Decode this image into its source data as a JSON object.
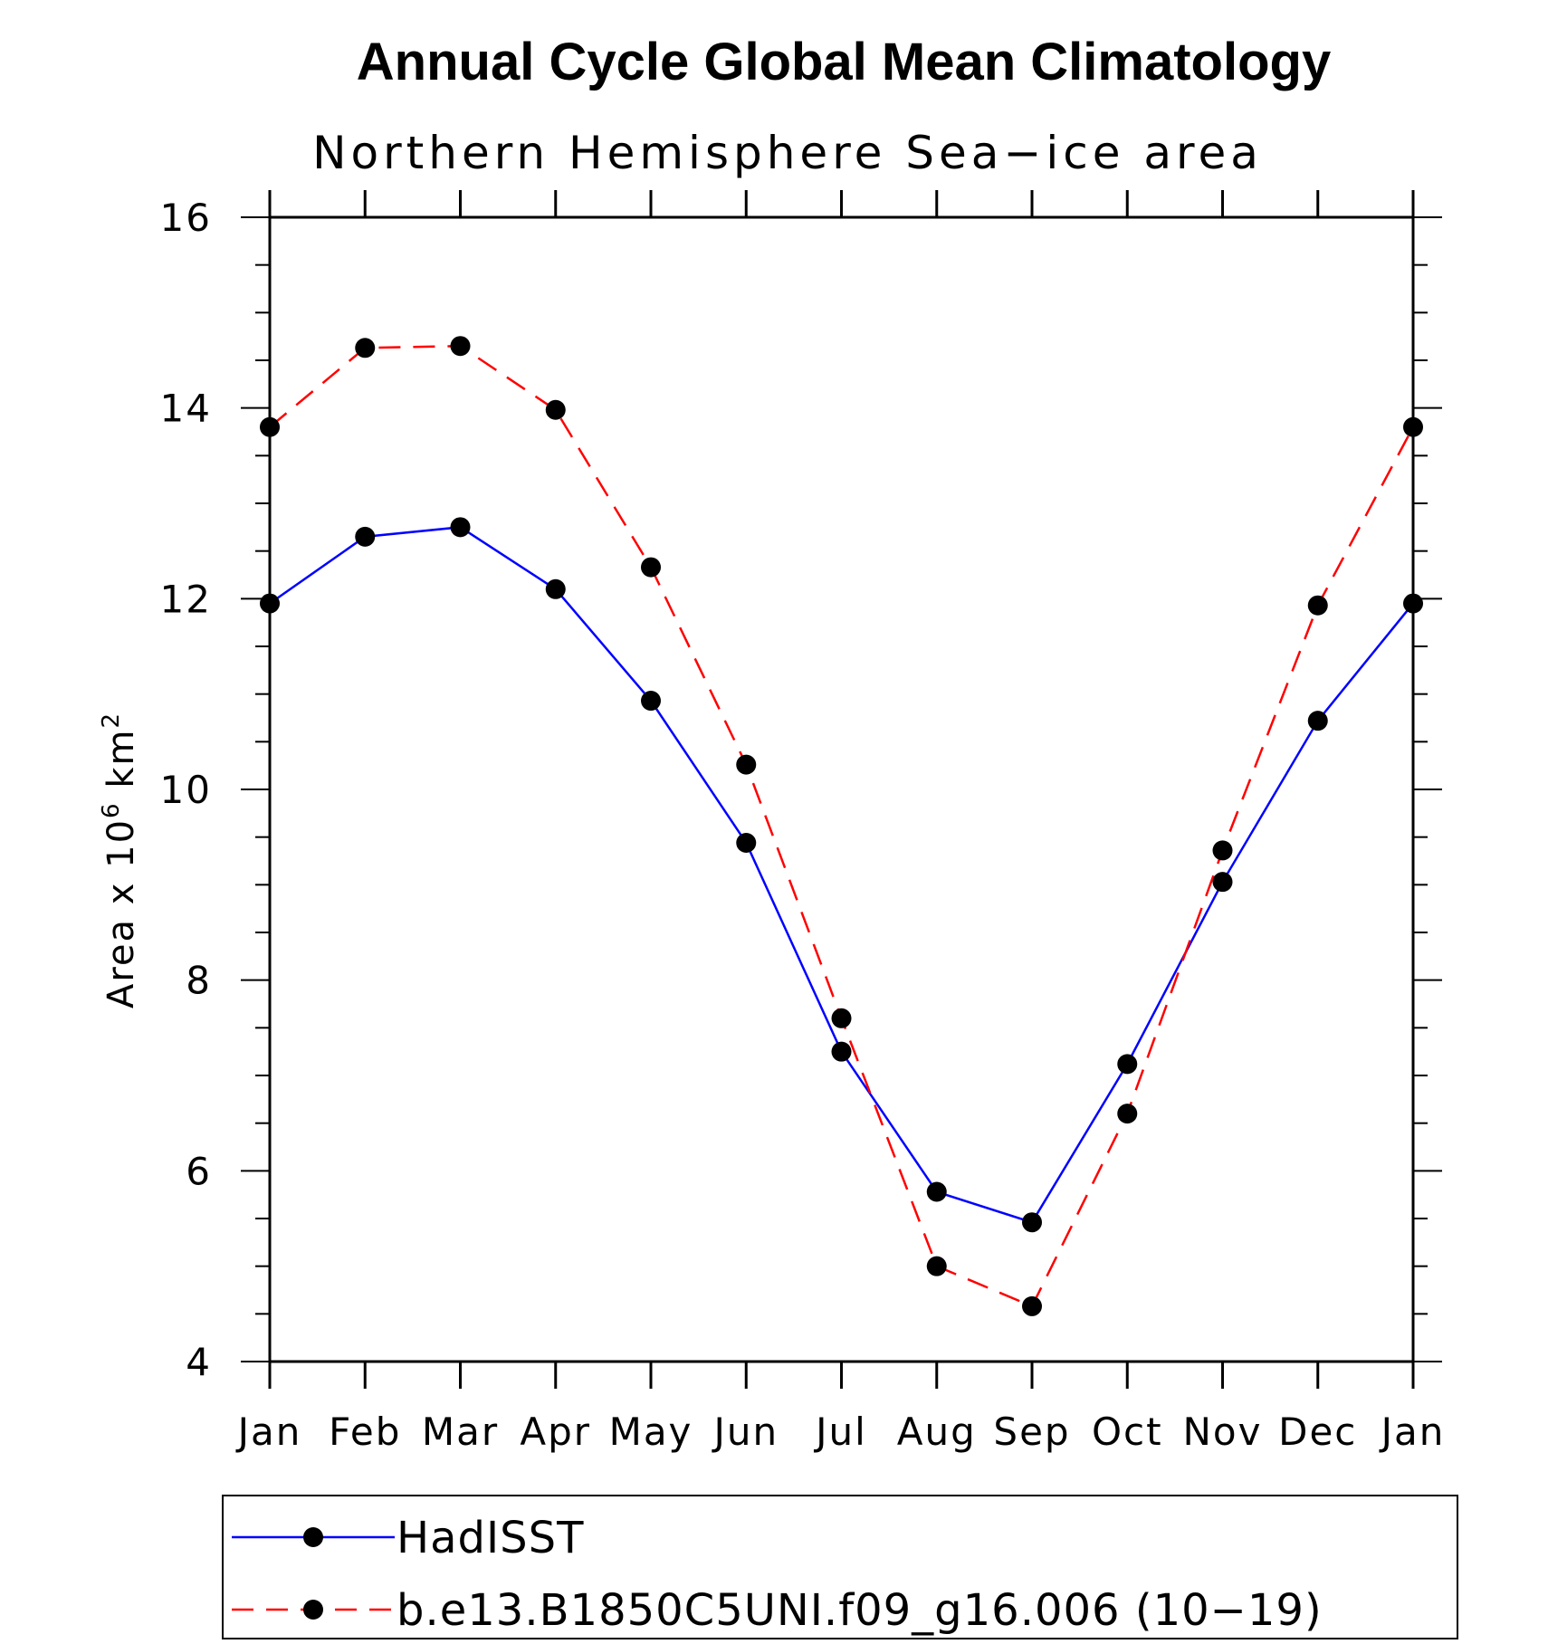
{
  "chart_data": {
    "type": "line",
    "title": "Annual Cycle Global Mean Climatology",
    "subtitle": "Northern Hemisphere Sea−ice area",
    "ylabel": "Area x 10^6 km^2",
    "ylabel_parts": {
      "main": "Area x 10",
      "exp1": "6",
      "unit": " km",
      "exp2": "2"
    },
    "categories": [
      "Jan",
      "Feb",
      "Mar",
      "Apr",
      "May",
      "Jun",
      "Jul",
      "Aug",
      "Sep",
      "Oct",
      "Nov",
      "Dec",
      "Jan"
    ],
    "ylim": [
      4,
      16
    ],
    "yticks": [
      "4",
      "6",
      "8",
      "10",
      "12",
      "14",
      "16"
    ],
    "ytick_values": [
      4,
      6,
      8,
      10,
      12,
      14,
      16
    ],
    "grid": false,
    "legend_position": "bottom",
    "series": [
      {
        "name": "HadISST",
        "color": "#0000ff",
        "dash": "solid",
        "values": [
          11.95,
          12.65,
          12.75,
          12.1,
          10.93,
          9.44,
          7.25,
          5.78,
          5.46,
          7.12,
          9.03,
          10.72,
          11.95
        ]
      },
      {
        "name": "b.e13.B1850C5UNI.f09_g16.006 (10−19)",
        "color": "#ff0000",
        "dash": "dashed",
        "values": [
          13.8,
          14.63,
          14.65,
          13.98,
          12.33,
          10.26,
          7.6,
          5.0,
          4.58,
          6.6,
          9.36,
          11.93,
          13.8
        ]
      }
    ]
  }
}
